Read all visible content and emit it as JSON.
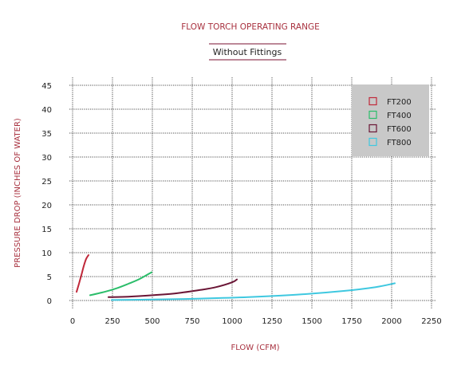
{
  "chart_data": {
    "type": "line",
    "title": "FLOW TORCH OPERATING RANGE",
    "subtitle": "Without Fittings",
    "xlabel": "FLOW (CFM)",
    "ylabel": "PRESSURE DROP (INCHES OF WATER)",
    "xlim": [
      0,
      2250
    ],
    "ylim": [
      0,
      45
    ],
    "xticks": [
      0,
      250,
      500,
      750,
      1000,
      1250,
      1500,
      1750,
      2000,
      2250
    ],
    "yticks": [
      0,
      5,
      10,
      15,
      20,
      25,
      30,
      35,
      40,
      45
    ],
    "grid": true,
    "legend_position": "top-right",
    "series": [
      {
        "name": "FT200",
        "color": "#c0283a",
        "points": [
          [
            25,
            1.8
          ],
          [
            40,
            3.5
          ],
          [
            55,
            5.3
          ],
          [
            70,
            7.2
          ],
          [
            85,
            8.7
          ],
          [
            100,
            9.5
          ]
        ]
      },
      {
        "name": "FT400",
        "color": "#2bbd6a",
        "points": [
          [
            110,
            1.1
          ],
          [
            200,
            1.8
          ],
          [
            280,
            2.6
          ],
          [
            350,
            3.5
          ],
          [
            420,
            4.5
          ],
          [
            495,
            5.9
          ]
        ]
      },
      {
        "name": "FT600",
        "color": "#6a1535",
        "points": [
          [
            225,
            0.7
          ],
          [
            350,
            0.8
          ],
          [
            500,
            1.1
          ],
          [
            650,
            1.5
          ],
          [
            800,
            2.2
          ],
          [
            900,
            2.8
          ],
          [
            1000,
            3.8
          ],
          [
            1030,
            4.4
          ]
        ]
      },
      {
        "name": "FT800",
        "color": "#3fc8e0",
        "points": [
          [
            245,
            0.1
          ],
          [
            500,
            0.2
          ],
          [
            800,
            0.4
          ],
          [
            1100,
            0.7
          ],
          [
            1400,
            1.2
          ],
          [
            1700,
            2.0
          ],
          [
            1900,
            2.8
          ],
          [
            2020,
            3.6
          ]
        ]
      }
    ]
  }
}
